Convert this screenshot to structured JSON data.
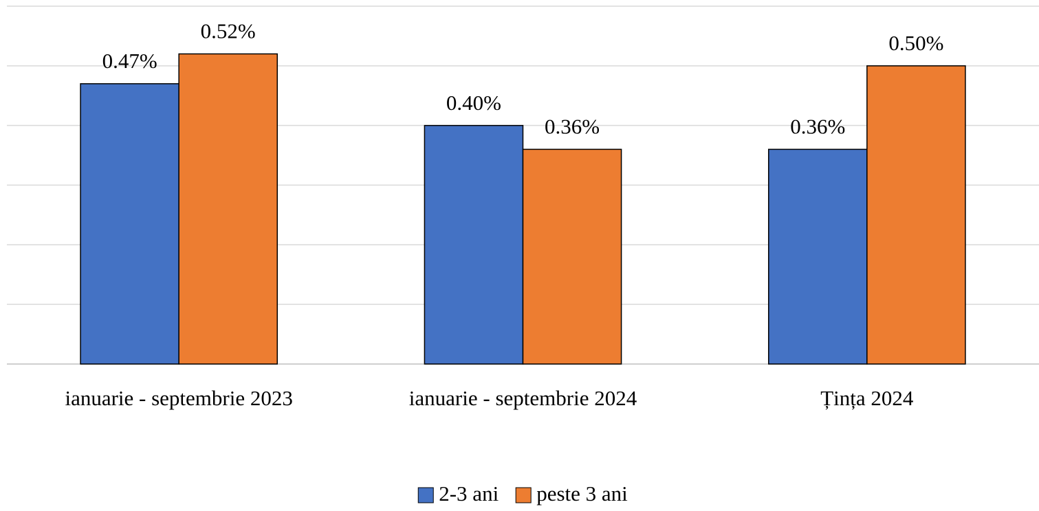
{
  "chart_data": {
    "type": "bar",
    "categories": [
      "ianuarie - septembrie 2023",
      "ianuarie - septembrie 2024",
      "Țința 2024"
    ],
    "series": [
      {
        "name": "2-3 ani",
        "color": "#4472c4",
        "values": [
          0.47,
          0.4,
          0.36
        ],
        "value_labels": [
          "0.47%",
          "0.40%",
          "0.36%"
        ]
      },
      {
        "name": "peste 3 ani",
        "color": "#ed7d31",
        "values": [
          0.52,
          0.36,
          0.5
        ],
        "value_labels": [
          "0.52%",
          "0.36%",
          "0.50%"
        ]
      }
    ],
    "ylim": [
      0,
      0.6
    ],
    "yticks": [
      0,
      0.1,
      0.2,
      0.3,
      0.4,
      0.5,
      0.6
    ],
    "grid": true,
    "legend": "bottom"
  }
}
